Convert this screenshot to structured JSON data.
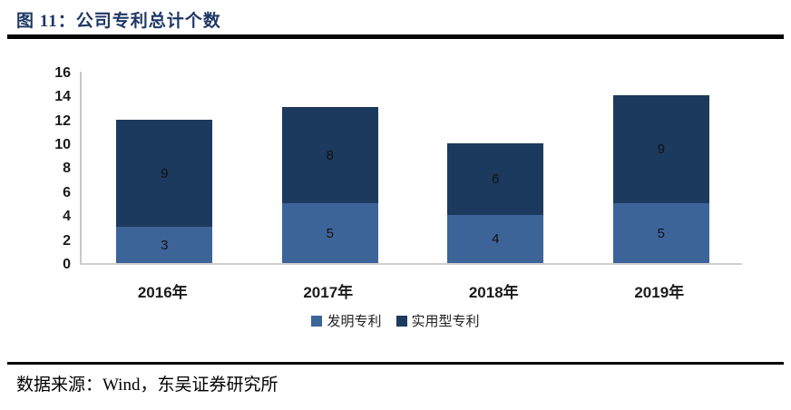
{
  "header": {
    "title": "图 11：公司专利总计个数"
  },
  "footer": {
    "source": "数据来源：Wind，东吴证券研究所"
  },
  "colors": {
    "title_text": "#1F3864",
    "divider": "#050505",
    "axis_line": "#C8C8C8",
    "invention_series": "#3D6498",
    "utility_series": "#1C3A5E"
  },
  "chart_data": {
    "type": "bar",
    "stacked": true,
    "title": "公司专利总计个数",
    "categories": [
      "2016年",
      "2017年",
      "2018年",
      "2019年"
    ],
    "series": [
      {
        "name": "发明专利",
        "key": "invention",
        "color": "#3D6498",
        "values": [
          3,
          5,
          4,
          5
        ]
      },
      {
        "name": "实用型专利",
        "key": "utility",
        "color": "#1C3A5E",
        "values": [
          9,
          8,
          6,
          9
        ]
      }
    ],
    "totals": [
      12,
      13,
      10,
      14
    ],
    "xlabel": "",
    "ylabel": "",
    "ylim": [
      0,
      16
    ],
    "ytick_step": 2,
    "grid": false,
    "data_labels": true,
    "legend_position": "bottom"
  }
}
